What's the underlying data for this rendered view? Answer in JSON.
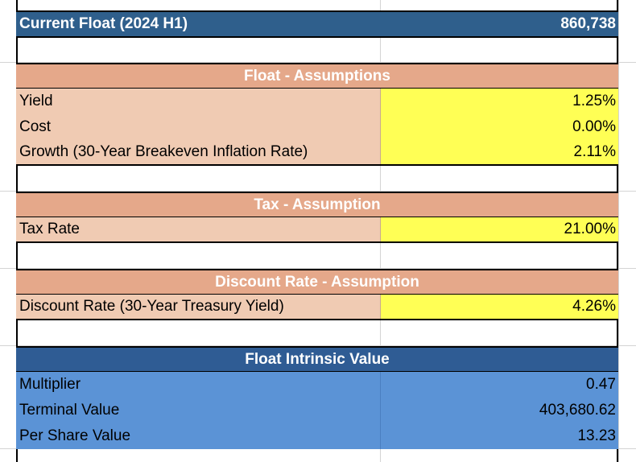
{
  "current_float": {
    "label": "Current Float (2024 H1)",
    "value": "860,738"
  },
  "float_assumptions": {
    "header": "Float - Assumptions",
    "rows": [
      {
        "label": "Yield",
        "value": "1.25%"
      },
      {
        "label": "Cost",
        "value": "0.00%"
      },
      {
        "label": "Growth (30-Year Breakeven Inflation Rate)",
        "value": "2.11%"
      }
    ]
  },
  "tax_assumption": {
    "header": "Tax - Assumption",
    "rows": [
      {
        "label": "Tax Rate",
        "value": "21.00%"
      }
    ]
  },
  "discount_assumption": {
    "header": "Discount Rate - Assumption",
    "rows": [
      {
        "label": "Discount Rate (30-Year Treasury Yield)",
        "value": "4.26%"
      }
    ]
  },
  "intrinsic_value": {
    "header": "Float Intrinsic Value",
    "rows": [
      {
        "label": "Multiplier",
        "value": "0.47"
      },
      {
        "label": "Terminal Value",
        "value": "403,680.62"
      },
      {
        "label": "Per Share Value",
        "value": "13.23"
      }
    ]
  },
  "colors": {
    "title_bar": "#2f5f8c",
    "assumption_header": "#e5a88a",
    "assumption_row": "#f0cbb3",
    "input_cell": "#ffff55",
    "value_header": "#2f5c94",
    "value_row": "#5b93d6"
  }
}
